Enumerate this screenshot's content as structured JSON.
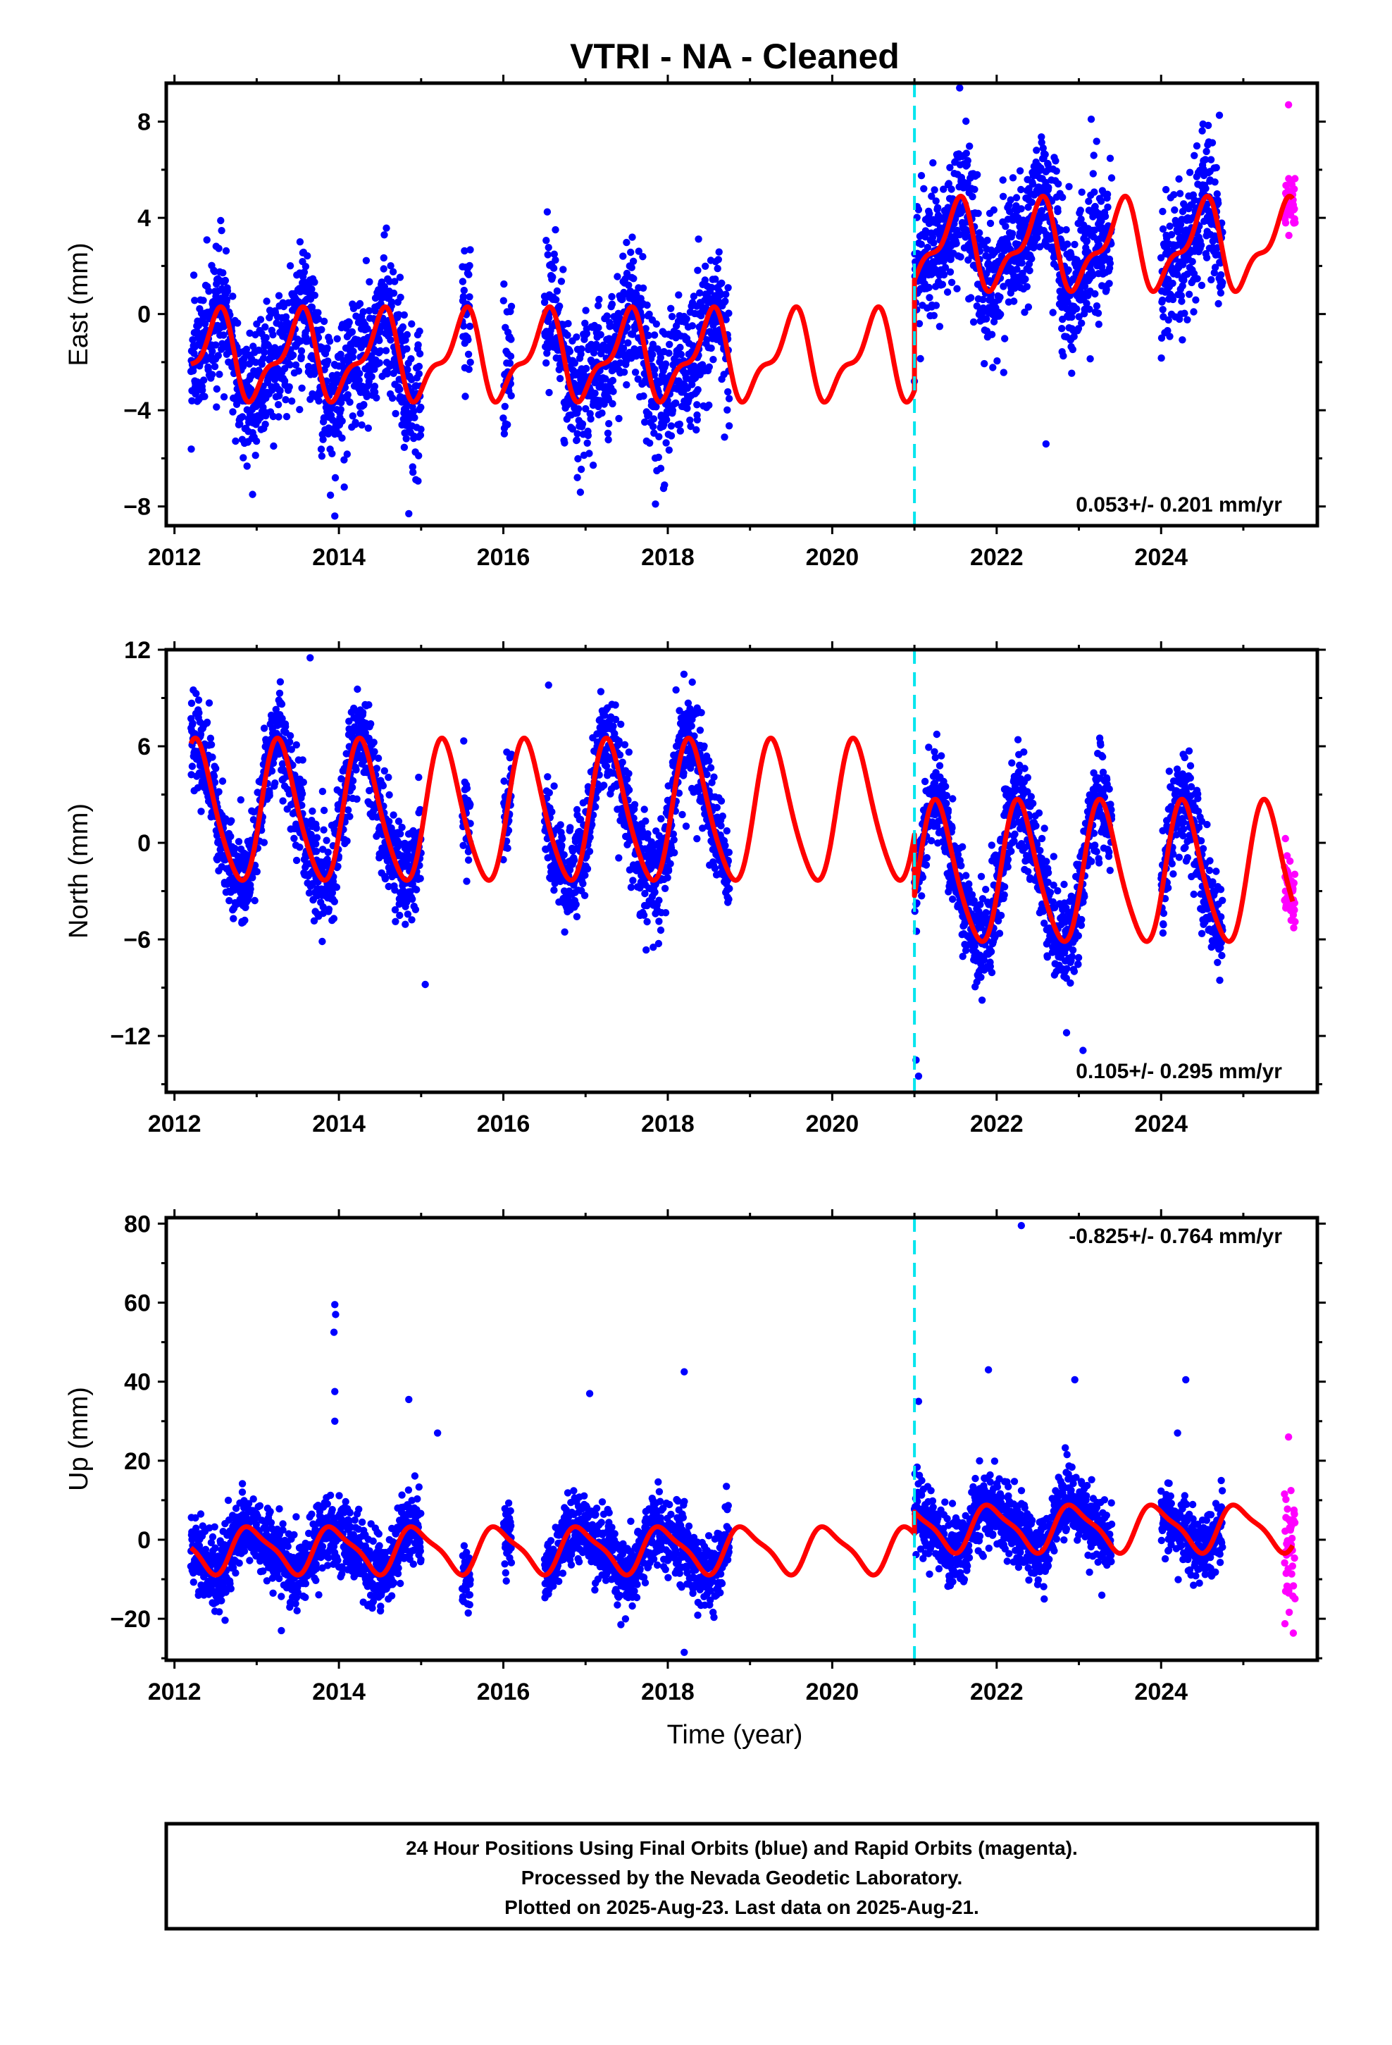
{
  "title": "VTRI  - NA - Cleaned",
  "xlabel": "Time (year)",
  "colors": {
    "final_orbits": "#0000ff",
    "rapid_orbits": "#ff00ff",
    "model": "#ff0000",
    "offset_line": "#00e5ee"
  },
  "footer": {
    "line1": "24 Hour Positions Using Final Orbits (blue) and Rapid Orbits (magenta).",
    "line2": "Processed by the Nevada Geodetic Laboratory.",
    "line3": "Plotted on 2025-Aug-23. Last data on 2025-Aug-21."
  },
  "chart_data": [
    {
      "type": "scatter",
      "component": "East",
      "ylabel": "East (mm)",
      "xlim": [
        2011.9,
        2025.9
      ],
      "ylim": [
        -8.8,
        9.6
      ],
      "x_ticks": [
        2012,
        2014,
        2016,
        2018,
        2020,
        2022,
        2024
      ],
      "y_ticks": [
        -8,
        -4,
        0,
        4,
        8
      ],
      "rate_label": "0.053+/- 0.201 mm/yr",
      "rate_position": "bottom-right",
      "offset_epoch": 2021.0,
      "model": {
        "start": 2012.2,
        "end": 2025.6,
        "pre_offset": -1.8,
        "post_offset": 2.8,
        "annual_amp": 1.6,
        "annual_phase": 0.5,
        "semiannual_amp": 0.7,
        "semiannual_phase": 0.1
      },
      "series": [
        {
          "orbit": "final",
          "segments": [
            [
              2012.2,
              2015.0
            ],
            [
              2015.5,
              2015.6
            ],
            [
              2016.0,
              2016.1
            ],
            [
              2016.5,
              2018.75
            ],
            [
              2021.0,
              2023.4
            ],
            [
              2024.0,
              2024.75
            ]
          ],
          "scatter": 1.4
        },
        {
          "orbit": "rapid",
          "segments": [
            [
              2025.5,
              2025.63
            ]
          ],
          "scatter": 0.6
        }
      ],
      "outliers": [
        {
          "x": 2013.95,
          "y": -8.4
        },
        {
          "x": 2014.85,
          "y": -8.3
        },
        {
          "x": 2017.85,
          "y": -7.9
        },
        {
          "x": 2021.55,
          "y": 9.4
        },
        {
          "x": 2023.15,
          "y": 8.1
        },
        {
          "x": 2022.6,
          "y": -5.4
        },
        {
          "x": 2012.95,
          "y": -7.5
        },
        {
          "x": 2016.9,
          "y": -6.8
        },
        {
          "x": 2025.55,
          "y": 8.7
        }
      ]
    },
    {
      "type": "scatter",
      "component": "North",
      "ylabel": "North (mm)",
      "xlim": [
        2011.9,
        2025.9
      ],
      "ylim": [
        -15.5,
        12.0
      ],
      "x_ticks": [
        2012,
        2014,
        2016,
        2018,
        2020,
        2022,
        2024
      ],
      "y_ticks": [
        -12,
        -6,
        0,
        6,
        12
      ],
      "rate_label": "0.105+/- 0.295 mm/yr",
      "rate_position": "bottom-right",
      "offset_epoch": 2021.0,
      "model": {
        "start": 2012.2,
        "end": 2025.6,
        "pre_offset": 1.8,
        "post_offset": -2.0,
        "annual_amp": 4.3,
        "annual_phase": 0.28,
        "semiannual_amp": 0.6,
        "semiannual_phase": 0.2
      },
      "series": [
        {
          "orbit": "final",
          "segments": [
            [
              2012.2,
              2015.0
            ],
            [
              2015.5,
              2015.6
            ],
            [
              2016.0,
              2016.1
            ],
            [
              2016.5,
              2018.75
            ],
            [
              2021.0,
              2023.4
            ],
            [
              2024.0,
              2024.75
            ]
          ],
          "scatter": 1.5
        },
        {
          "orbit": "rapid",
          "segments": [
            [
              2025.5,
              2025.63
            ]
          ],
          "scatter": 1.0
        }
      ],
      "outliers": [
        {
          "x": 2013.65,
          "y": 11.5
        },
        {
          "x": 2021.05,
          "y": -14.5
        },
        {
          "x": 2021.02,
          "y": -13.5
        },
        {
          "x": 2022.85,
          "y": -11.8
        },
        {
          "x": 2023.05,
          "y": -12.9
        },
        {
          "x": 2015.05,
          "y": -8.8
        },
        {
          "x": 2016.55,
          "y": 9.8
        },
        {
          "x": 2018.1,
          "y": 9.5
        }
      ]
    },
    {
      "type": "scatter",
      "component": "Up",
      "ylabel": "Up (mm)",
      "xlim": [
        2011.9,
        2025.9
      ],
      "ylim": [
        -30.5,
        81.5
      ],
      "x_ticks": [
        2012,
        2014,
        2016,
        2018,
        2020,
        2022,
        2024
      ],
      "y_ticks": [
        -20,
        0,
        20,
        40,
        60,
        80
      ],
      "rate_label": "-0.825+/- 0.764 mm/yr",
      "rate_position": "top-right",
      "offset_epoch": 2021.0,
      "model": {
        "start": 2012.2,
        "end": 2025.6,
        "pre_offset": -2.5,
        "post_offset": 3.0,
        "annual_amp": 5.5,
        "annual_phase": 0.95,
        "semiannual_amp": 1.5,
        "semiannual_phase": 0.3
      },
      "series": [
        {
          "orbit": "final",
          "segments": [
            [
              2012.2,
              2015.0
            ],
            [
              2015.5,
              2015.6
            ],
            [
              2016.0,
              2016.1
            ],
            [
              2016.5,
              2018.75
            ],
            [
              2021.0,
              2023.4
            ],
            [
              2024.0,
              2024.75
            ]
          ],
          "scatter": 4.5
        },
        {
          "orbit": "rapid",
          "segments": [
            [
              2025.5,
              2025.63
            ]
          ],
          "scatter": 8.0
        }
      ],
      "outliers": [
        {
          "x": 2013.95,
          "y": 59.5
        },
        {
          "x": 2013.96,
          "y": 57.0
        },
        {
          "x": 2013.94,
          "y": 52.5
        },
        {
          "x": 2013.95,
          "y": 37.5
        },
        {
          "x": 2013.95,
          "y": 30.0
        },
        {
          "x": 2014.85,
          "y": 35.5
        },
        {
          "x": 2015.2,
          "y": 27.0
        },
        {
          "x": 2017.05,
          "y": 37.0
        },
        {
          "x": 2018.2,
          "y": 42.5
        },
        {
          "x": 2018.2,
          "y": -28.5
        },
        {
          "x": 2022.3,
          "y": 79.5
        },
        {
          "x": 2021.9,
          "y": 43.0
        },
        {
          "x": 2022.95,
          "y": 40.5
        },
        {
          "x": 2024.3,
          "y": 40.5
        },
        {
          "x": 2024.2,
          "y": 27.0
        },
        {
          "x": 2013.3,
          "y": -23.0
        },
        {
          "x": 2021.05,
          "y": 35.0
        },
        {
          "x": 2025.55,
          "y": 26.0
        }
      ]
    }
  ]
}
